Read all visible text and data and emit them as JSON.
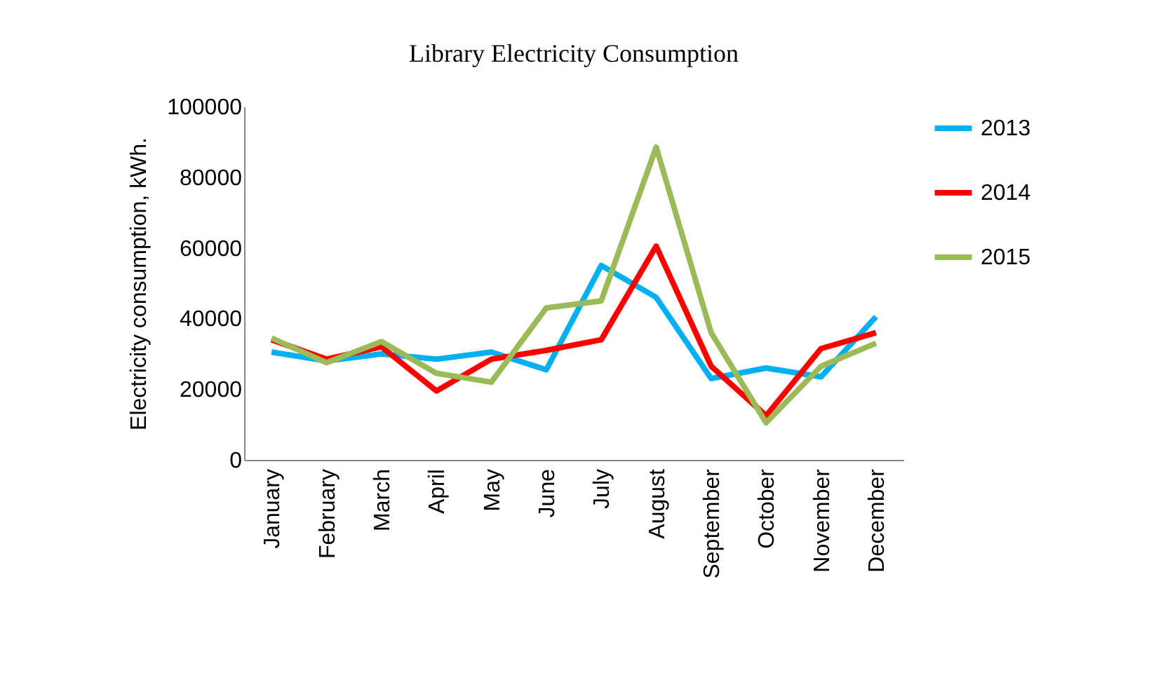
{
  "chart_data": {
    "type": "line",
    "title": "Library Electricity Consumption",
    "ylabel": "Electricity consumption, kWh.",
    "categories": [
      "January",
      "February",
      "March",
      "April",
      "May",
      "June",
      "July",
      "August",
      "September",
      "October",
      "November",
      "December"
    ],
    "series": [
      {
        "name": "2013",
        "color": "#00b0f0",
        "values": [
          30500,
          28000,
          30000,
          28500,
          30500,
          25500,
          55000,
          46000,
          23000,
          26000,
          23500,
          40500
        ]
      },
      {
        "name": "2014",
        "color": "#ff0000",
        "values": [
          34000,
          28500,
          32000,
          19500,
          28500,
          31000,
          34000,
          60500,
          26500,
          12500,
          31500,
          36000
        ]
      },
      {
        "name": "2015",
        "color": "#9bbb59",
        "values": [
          34500,
          27500,
          33500,
          24500,
          22000,
          43000,
          45000,
          88500,
          36000,
          10500,
          26500,
          33000
        ]
      }
    ],
    "ylim": [
      0,
      100000
    ],
    "yticks": [
      0,
      20000,
      40000,
      60000,
      80000,
      100000
    ],
    "grid": false,
    "legend": "right",
    "marker": "none",
    "line_style": "solid"
  }
}
